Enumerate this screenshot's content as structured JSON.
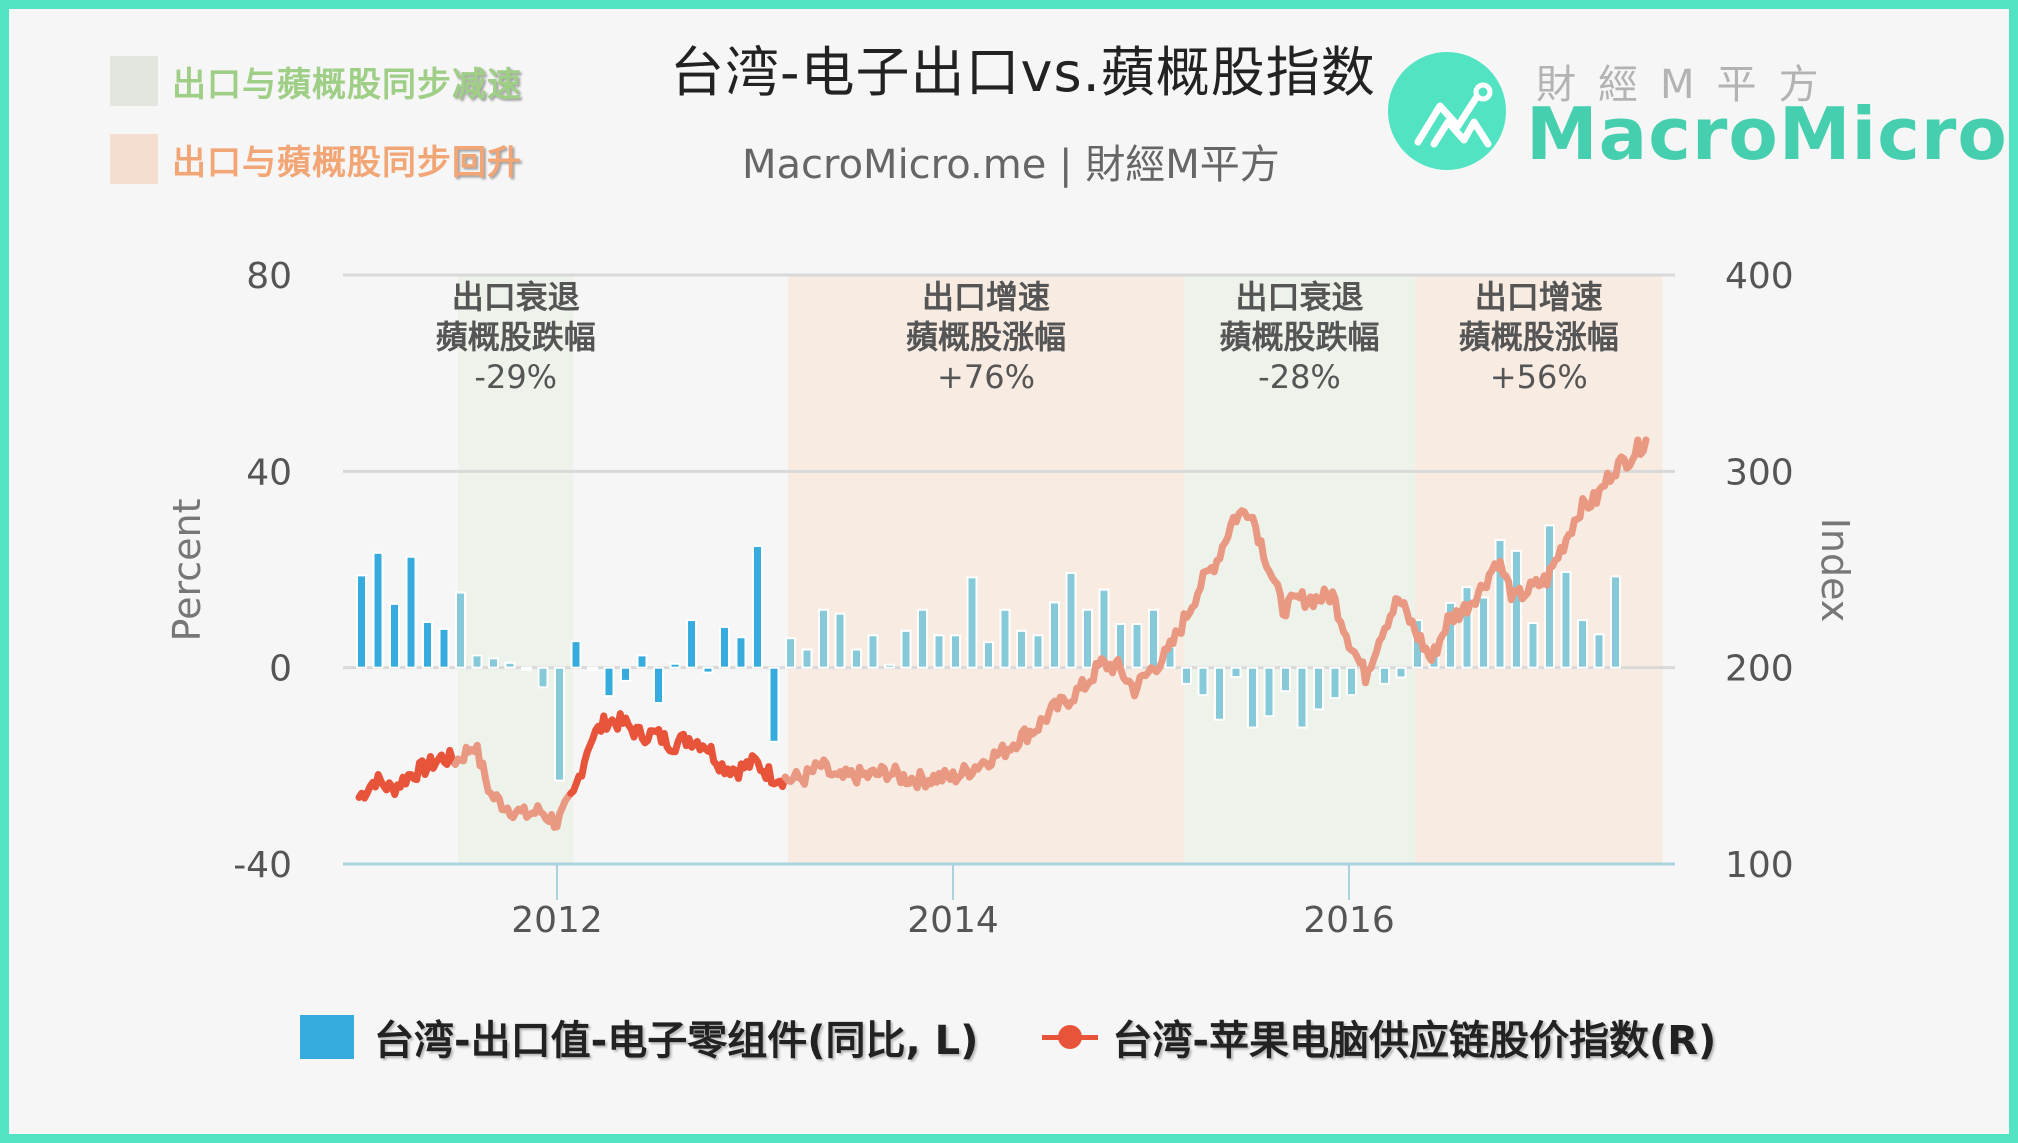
{
  "header": {
    "title": "台湾-电子出口vs.蘋概股指数",
    "subtitle": "MacroMicro.me | 財經M平方"
  },
  "logo": {
    "cn": "財經M平方",
    "en": "MacroMicro"
  },
  "top_legend": [
    {
      "prefix": "出口与蘋概股同步",
      "emphasis": "减速",
      "color": "#9fce86",
      "swatch": "#e3e6df"
    },
    {
      "prefix": "出口与蘋概股同步",
      "emphasis": "回升",
      "color": "#f2a676",
      "swatch": "#f5ddd0"
    }
  ],
  "bottom_legend": {
    "bars_label": "台湾-出口值-电子零组件(同比, L)",
    "line_label": "台湾-苹果电脑供应链股价指数(R)"
  },
  "colors": {
    "border": "#52e4c2",
    "bar": "#35acdd",
    "bar_in_band": "#86c9d9",
    "line": "#e8543a",
    "line_in_band": "#e99882",
    "band_green": "#edf2ea",
    "band_orange": "#f8ebe2",
    "grid": "#d9d9d9",
    "axis": "#a9d3df"
  },
  "chart_data": {
    "type": "bar+line",
    "title": "台湾-电子出口vs.蘋概股指数",
    "subtitle": "MacroMicro.me | 財經M平方",
    "xlabel": "",
    "ylabel_left": "Percent",
    "ylabel_right": "Index",
    "ylim_left": [
      -40,
      80
    ],
    "ylim_right": [
      100,
      400
    ],
    "yticks_left": [
      "80",
      "40",
      "0",
      "-40"
    ],
    "yticks_right": [
      "400",
      "300",
      "200",
      "100"
    ],
    "xticks": [
      "2012",
      "2014",
      "2016"
    ],
    "grid": true,
    "legend_position": "bottom",
    "start_month": "2011-01",
    "series": [
      {
        "name": "台湾-出口值-电子零组件(同比, L)",
        "type": "bar",
        "axis": "left",
        "values": [
          18.8,
          23.4,
          13.0,
          22.6,
          9.3,
          7.9,
          15.3,
          2.5,
          1.9,
          1.0,
          -0.3,
          -4.0,
          -23.0,
          5.4,
          -0.2,
          -5.8,
          -2.7,
          2.5,
          -7.2,
          0.8,
          9.7,
          -1.0,
          8.3,
          6.2,
          24.8,
          -15.1,
          6.0,
          3.7,
          11.8,
          11.0,
          3.7,
          6.6,
          0.6,
          7.5,
          11.8,
          6.6,
          6.6,
          18.4,
          5.2,
          11.8,
          7.5,
          6.6,
          13.3,
          19.3,
          11.8,
          15.9,
          8.9,
          8.9,
          11.8,
          4.3,
          -3.3,
          -5.6,
          -10.6,
          -1.9,
          -12.2,
          -9.9,
          -4.8,
          -12.2,
          -8.5,
          -6.2,
          -5.6,
          -1.0,
          -3.3,
          -2.0,
          9.7,
          4.6,
          13.2,
          16.4,
          14.3,
          26.0,
          23.8,
          9.1,
          29.0,
          19.5,
          9.7,
          6.8,
          18.6
        ]
      },
      {
        "name": "台湾-苹果电脑供应链股价指数(R)",
        "type": "line",
        "axis": "right",
        "values": [
          134,
          143,
          138,
          145,
          149,
          154,
          153,
          161,
          135,
          129,
          125,
          127,
          121,
          135,
          163,
          173,
          172,
          166,
          166,
          161,
          164,
          161,
          150,
          148,
          152,
          145,
          143,
          144,
          150,
          143,
          145,
          145,
          147,
          144,
          143,
          144,
          144,
          148,
          153,
          157,
          164,
          169,
          178,
          184,
          191,
          202,
          200,
          189,
          199,
          207,
          224,
          242,
          255,
          276,
          281,
          255,
          230,
          235,
          235,
          237,
          214,
          196,
          219,
          235,
          219,
          204,
          224,
          230,
          240,
          255,
          235,
          240,
          245,
          263,
          281,
          286,
          301,
          307,
          316
        ]
      }
    ],
    "bands": [
      {
        "start": "2011-07",
        "end": "2012-02",
        "type": "green",
        "lines": [
          "出口衰退",
          "蘋概股跌幅",
          "-29%"
        ]
      },
      {
        "start": "2013-03",
        "end": "2015-03",
        "type": "orange",
        "lines": [
          "出口增速",
          "蘋概股涨幅",
          "+76%"
        ]
      },
      {
        "start": "2015-03",
        "end": "2016-05",
        "type": "green",
        "lines": [
          "出口衰退",
          "蘋概股跌幅",
          "-28%"
        ]
      },
      {
        "start": "2016-05",
        "end": "2017-08",
        "type": "orange",
        "lines": [
          "出口增速",
          "蘋概股涨幅",
          "+56%"
        ]
      }
    ]
  }
}
